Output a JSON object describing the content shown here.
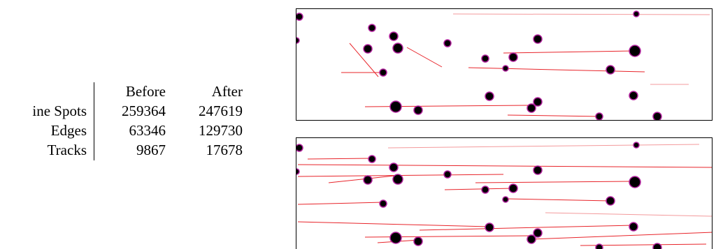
{
  "table": {
    "header": [
      "Before",
      "After"
    ],
    "rows": [
      [
        "ine Spots",
        "259364",
        "247619"
      ],
      [
        "Edges",
        "63346",
        "129730"
      ],
      [
        "Tracks",
        "9867",
        "17678"
      ]
    ]
  }
}
